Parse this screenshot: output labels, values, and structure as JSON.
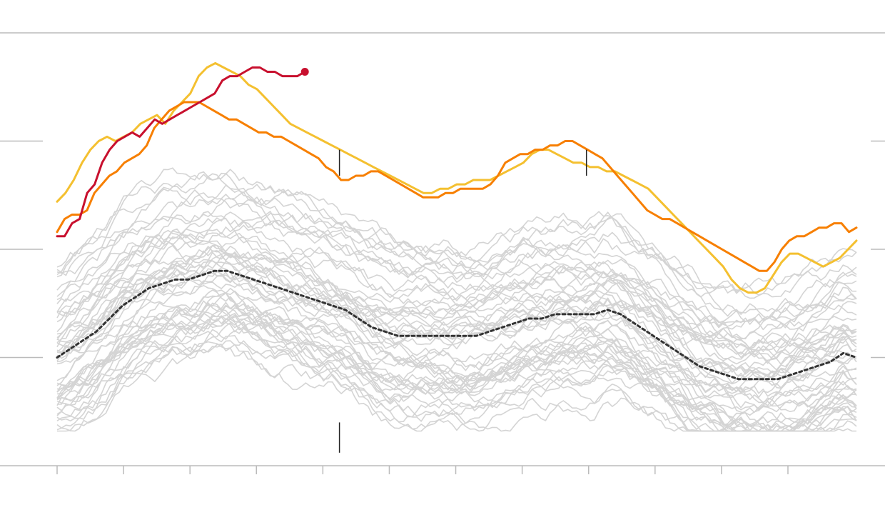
{
  "chart_data": {
    "type": "line",
    "title": "",
    "xlabel": "",
    "ylabel": "",
    "x_ticks": 12,
    "y_gridlines": 4,
    "grid": true,
    "legend": "none",
    "colors": {
      "background_series": "#d4d4d4",
      "average": "#333333",
      "current": "#c8102e",
      "orange": "#f77f00",
      "yellow": "#f4c030",
      "marker": "#222222",
      "grid": "#bbbbbb"
    },
    "series": [
      {
        "role": "current",
        "values": [
          0.53,
          0.53,
          0.56,
          0.57,
          0.63,
          0.65,
          0.7,
          0.73,
          0.75,
          0.76,
          0.77,
          0.76,
          0.78,
          0.8,
          0.79,
          0.8,
          0.81,
          0.82,
          0.83,
          0.84,
          0.85,
          0.86,
          0.89,
          0.9,
          0.9,
          0.91,
          0.92,
          0.92,
          0.91,
          0.91,
          0.9,
          0.9,
          0.9,
          0.91
        ]
      },
      {
        "role": "orange",
        "values": [
          0.54,
          0.57,
          0.58,
          0.58,
          0.59,
          0.63,
          0.65,
          0.67,
          0.68,
          0.7,
          0.71,
          0.72,
          0.74,
          0.78,
          0.8,
          0.82,
          0.83,
          0.84,
          0.84,
          0.84,
          0.83,
          0.82,
          0.81,
          0.8,
          0.8,
          0.79,
          0.78,
          0.77,
          0.77,
          0.76,
          0.76,
          0.75,
          0.74,
          0.73,
          0.72,
          0.71,
          0.69,
          0.68,
          0.66,
          0.66,
          0.67,
          0.67,
          0.68,
          0.68,
          0.67,
          0.66,
          0.65,
          0.64,
          0.63,
          0.62,
          0.62,
          0.62,
          0.63,
          0.63,
          0.64,
          0.64,
          0.64,
          0.64,
          0.65,
          0.67,
          0.7,
          0.71,
          0.72,
          0.72,
          0.73,
          0.73,
          0.74,
          0.74,
          0.75,
          0.75,
          0.74,
          0.73,
          0.72,
          0.71,
          0.69,
          0.67,
          0.65,
          0.63,
          0.61,
          0.59,
          0.58,
          0.57,
          0.57,
          0.56,
          0.55,
          0.54,
          0.53,
          0.52,
          0.51,
          0.5,
          0.49,
          0.48,
          0.47,
          0.46,
          0.45,
          0.45,
          0.47,
          0.5,
          0.52,
          0.53,
          0.53,
          0.54,
          0.55,
          0.55,
          0.56,
          0.56,
          0.54,
          0.55
        ]
      },
      {
        "role": "yellow",
        "values": [
          0.61,
          0.63,
          0.66,
          0.7,
          0.73,
          0.75,
          0.76,
          0.75,
          0.76,
          0.77,
          0.79,
          0.8,
          0.81,
          0.79,
          0.82,
          0.84,
          0.86,
          0.9,
          0.92,
          0.93,
          0.92,
          0.91,
          0.9,
          0.88,
          0.87,
          0.85,
          0.83,
          0.81,
          0.79,
          0.78,
          0.77,
          0.76,
          0.75,
          0.74,
          0.73,
          0.72,
          0.71,
          0.7,
          0.69,
          0.68,
          0.67,
          0.66,
          0.65,
          0.64,
          0.63,
          0.63,
          0.64,
          0.64,
          0.65,
          0.65,
          0.66,
          0.66,
          0.66,
          0.67,
          0.68,
          0.69,
          0.7,
          0.72,
          0.73,
          0.73,
          0.72,
          0.71,
          0.7,
          0.7,
          0.69,
          0.69,
          0.68,
          0.68,
          0.67,
          0.66,
          0.65,
          0.64,
          0.62,
          0.6,
          0.58,
          0.56,
          0.54,
          0.52,
          0.5,
          0.48,
          0.46,
          0.43,
          0.41,
          0.4,
          0.4,
          0.41,
          0.44,
          0.47,
          0.49,
          0.49,
          0.48,
          0.47,
          0.46,
          0.47,
          0.48,
          0.5,
          0.52
        ]
      },
      {
        "role": "average",
        "values": [
          0.25,
          0.27,
          0.29,
          0.31,
          0.34,
          0.37,
          0.39,
          0.41,
          0.42,
          0.43,
          0.43,
          0.44,
          0.45,
          0.45,
          0.44,
          0.43,
          0.42,
          0.41,
          0.4,
          0.39,
          0.38,
          0.37,
          0.36,
          0.34,
          0.32,
          0.31,
          0.3,
          0.3,
          0.3,
          0.3,
          0.3,
          0.3,
          0.3,
          0.31,
          0.32,
          0.33,
          0.34,
          0.34,
          0.35,
          0.35,
          0.35,
          0.35,
          0.36,
          0.35,
          0.33,
          0.31,
          0.29,
          0.27,
          0.25,
          0.23,
          0.22,
          0.21,
          0.2,
          0.2,
          0.2,
          0.2,
          0.21,
          0.22,
          0.23,
          0.24,
          0.26,
          0.25
        ]
      }
    ],
    "markers": [
      {
        "x_fraction": 0.355,
        "y_from": 0.67,
        "y_to": 0.73
      },
      {
        "x_fraction": 0.355,
        "y_from": 0.03,
        "y_to": 0.1
      },
      {
        "x_fraction": 0.664,
        "y_from": 0.67,
        "y_to": 0.73
      }
    ]
  }
}
